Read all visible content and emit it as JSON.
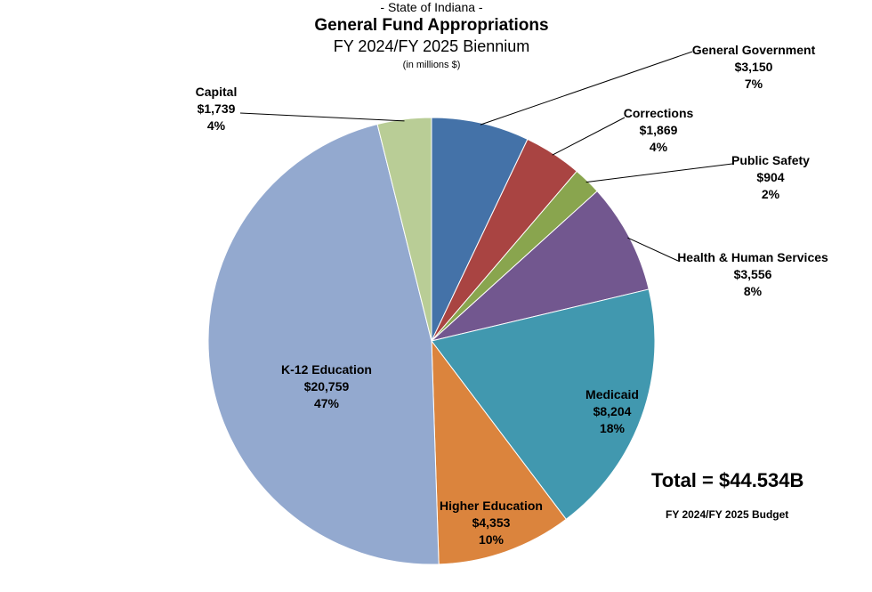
{
  "chart_data": {
    "type": "pie",
    "pretitle": "- State of Indiana -",
    "title": "General Fund Appropriations",
    "subtitle": "FY 2024/FY 2025 Biennium",
    "units": "(in millions $)",
    "start": "12 o'clock",
    "direction": "clockwise",
    "slices": [
      {
        "name": "General Government",
        "value": 3150,
        "value_label": "$3,150",
        "percent": "7%",
        "color": "#4472A8"
      },
      {
        "name": "Corrections",
        "value": 1869,
        "value_label": "$1,869",
        "percent": "4%",
        "color": "#A94442"
      },
      {
        "name": "Public Safety",
        "value": 904,
        "value_label": "$904",
        "percent": "2%",
        "color": "#89A54E"
      },
      {
        "name": "Health & Human Services",
        "value": 3556,
        "value_label": "$3,556",
        "percent": "8%",
        "color": "#72578F"
      },
      {
        "name": "Medicaid",
        "value": 8204,
        "value_label": "$8,204",
        "percent": "18%",
        "color": "#4198AF"
      },
      {
        "name": "Higher Education",
        "value": 4353,
        "value_label": "$4,353",
        "percent": "10%",
        "color": "#DB843D"
      },
      {
        "name": "K-12 Education",
        "value": 20759,
        "value_label": "$20,759",
        "percent": "47%",
        "color": "#93A9CF"
      },
      {
        "name": "Capital",
        "value": 1739,
        "value_label": "$1,739",
        "percent": "4%",
        "color": "#B9CD96"
      }
    ],
    "total_label": "Total = $44.534B",
    "footnote": "FY 2024/FY 2025 Budget"
  }
}
